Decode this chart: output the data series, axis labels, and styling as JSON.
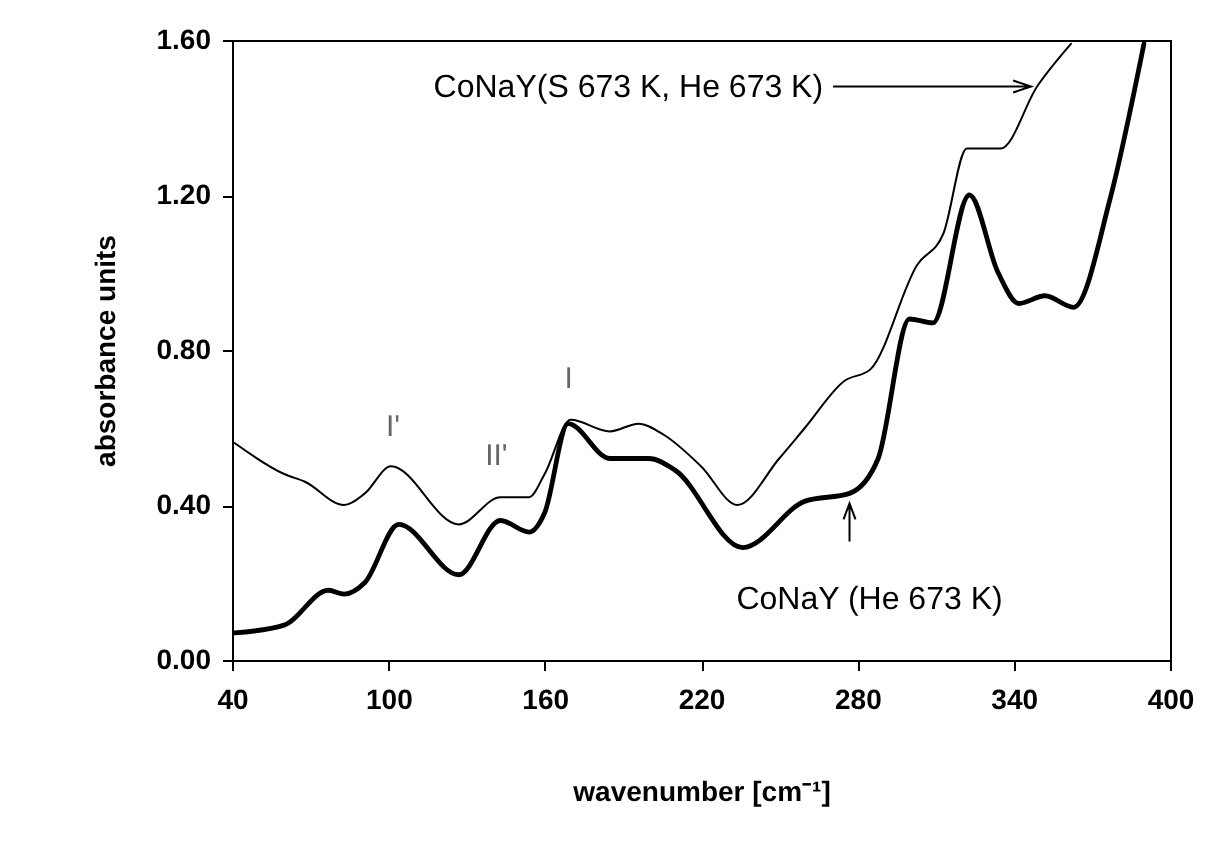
{
  "chart_data": {
    "type": "line",
    "xlabel": "wavenumber [cm⁻¹]",
    "ylabel": "absorbance units",
    "xlim": [
      40,
      400
    ],
    "ylim": [
      0,
      1.6
    ],
    "xticks": [
      40,
      100,
      160,
      220,
      280,
      340,
      400
    ],
    "yticks": [
      {
        "value": 0,
        "label": "0.00"
      },
      {
        "value": 0.4,
        "label": "0.40"
      },
      {
        "value": 0.8,
        "label": "0.80"
      },
      {
        "value": 1.2,
        "label": "1.20"
      },
      {
        "value": 1.6,
        "label": "1.60"
      }
    ],
    "grid": false,
    "marker": "none",
    "line_style": "solid",
    "series": [
      {
        "color": "#000000",
        "x": [
          41,
          60,
          68,
          83,
          91,
          101,
          127,
          143,
          154,
          160,
          170,
          185,
          196,
          206,
          220,
          234,
          250,
          260,
          275,
          285,
          303,
          313,
          322,
          335,
          349,
          362
        ],
        "values": [
          0.56,
          0.48,
          0.46,
          0.4,
          0.43,
          0.5,
          0.35,
          0.42,
          0.42,
          0.48,
          0.62,
          0.59,
          0.61,
          0.58,
          0.5,
          0.4,
          0.52,
          0.6,
          0.72,
          0.75,
          1.02,
          1.1,
          1.32,
          1.32,
          1.48,
          1.59
        ]
      },
      {
        "color": "#000000",
        "x": [
          41,
          60,
          77,
          83,
          91,
          104,
          127,
          143,
          154,
          160,
          169,
          185,
          200,
          210,
          236,
          260,
          277,
          288,
          300,
          309,
          323,
          334,
          342,
          352,
          363,
          377,
          390
        ],
        "values": [
          0.07,
          0.09,
          0.18,
          0.17,
          0.2,
          0.35,
          0.22,
          0.36,
          0.33,
          0.38,
          0.61,
          0.52,
          0.52,
          0.49,
          0.29,
          0.41,
          0.43,
          0.52,
          0.88,
          0.87,
          1.2,
          1.0,
          0.92,
          0.94,
          0.91,
          1.19,
          1.59
        ]
      }
    ],
    "annotations": [
      {
        "text": "CoNaY(S 673 K, He 673 K)",
        "x": 349,
        "y": 1.48
      },
      {
        "text": "CoNaY (He 673 K)",
        "x": 277,
        "y": 0.43
      },
      {
        "text": "I'",
        "x": 101,
        "y": 0.5
      },
      {
        "text": "II'",
        "x": 143,
        "y": 0.42
      },
      {
        "text": "I",
        "x": 170,
        "y": 0.62
      }
    ]
  }
}
